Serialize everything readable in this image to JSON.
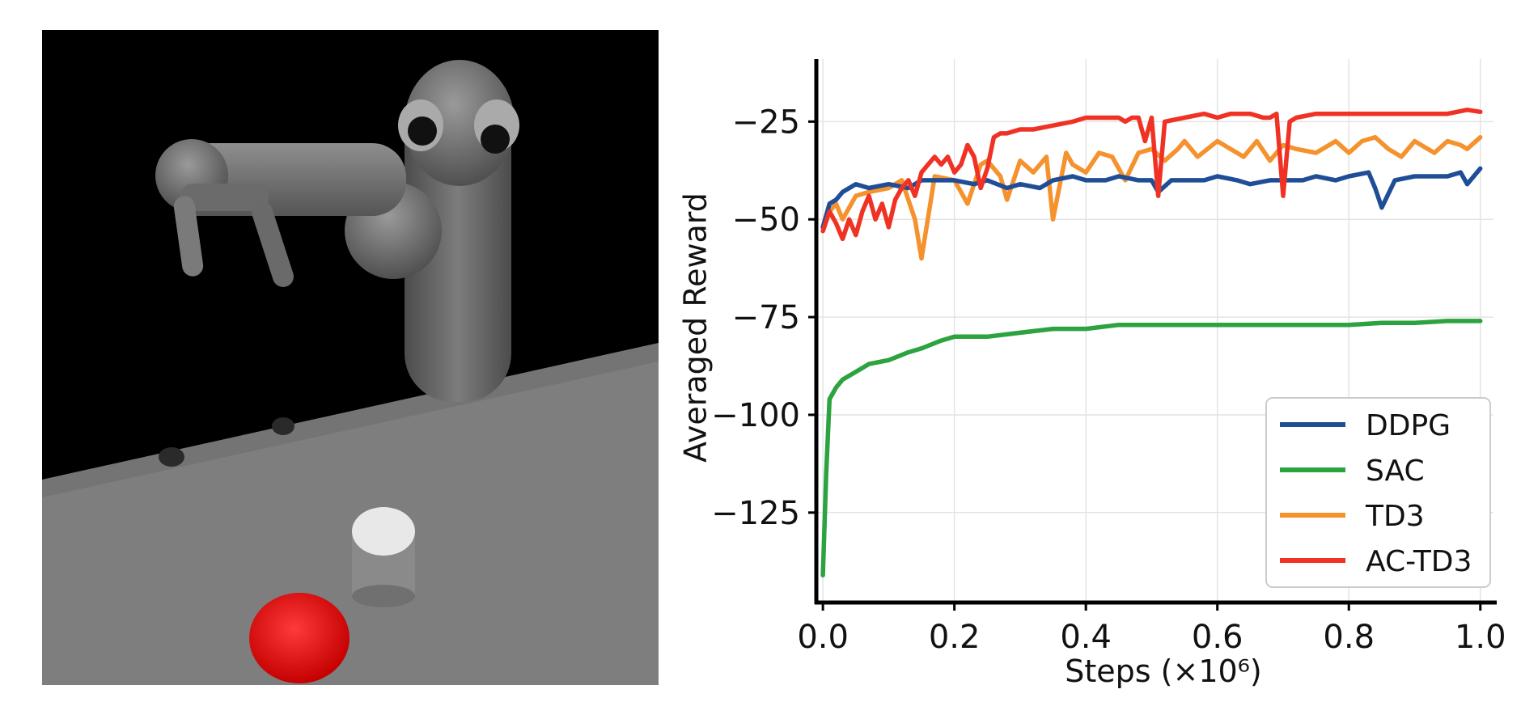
{
  "chart_data": {
    "type": "line",
    "xlabel": "Steps (×10⁶)",
    "ylabel": "Averaged Reward",
    "xlim": [
      -0.01,
      1.02
    ],
    "ylim": [
      -148,
      -9
    ],
    "xticks": [
      0.0,
      0.2,
      0.4,
      0.6,
      0.8,
      1.0
    ],
    "xtick_labels": [
      "0.0",
      "0.2",
      "0.4",
      "0.6",
      "0.8",
      "1.0"
    ],
    "yticks": [
      -25,
      -50,
      -75,
      -100,
      -125
    ],
    "ytick_labels": [
      "−25",
      "−50",
      "−75",
      "−100",
      "−125"
    ],
    "grid": true,
    "legend_position": "bottom-right",
    "series": [
      {
        "name": "DDPG",
        "color": "#1f4e96",
        "x": [
          0.0,
          0.01,
          0.02,
          0.03,
          0.05,
          0.07,
          0.1,
          0.13,
          0.15,
          0.18,
          0.2,
          0.23,
          0.25,
          0.28,
          0.3,
          0.33,
          0.35,
          0.38,
          0.4,
          0.43,
          0.45,
          0.48,
          0.5,
          0.51,
          0.53,
          0.55,
          0.58,
          0.6,
          0.63,
          0.65,
          0.68,
          0.7,
          0.73,
          0.75,
          0.78,
          0.8,
          0.83,
          0.84,
          0.85,
          0.87,
          0.9,
          0.92,
          0.95,
          0.97,
          0.98,
          1.0
        ],
        "values": [
          -52,
          -46,
          -45,
          -43,
          -41,
          -42,
          -41,
          -42,
          -40,
          -40,
          -40,
          -41,
          -40,
          -42,
          -41,
          -42,
          -40,
          -39,
          -40,
          -40,
          -39,
          -40,
          -40,
          -43,
          -40,
          -40,
          -40,
          -39,
          -40,
          -41,
          -40,
          -40,
          -40,
          -39,
          -40,
          -39,
          -38,
          -42,
          -47,
          -40,
          -39,
          -39,
          -39,
          -38,
          -41,
          -37
        ]
      },
      {
        "name": "SAC",
        "color": "#2ca33f",
        "x": [
          0.0,
          0.005,
          0.01,
          0.02,
          0.03,
          0.05,
          0.07,
          0.1,
          0.13,
          0.15,
          0.18,
          0.2,
          0.25,
          0.3,
          0.35,
          0.4,
          0.45,
          0.5,
          0.55,
          0.6,
          0.65,
          0.7,
          0.75,
          0.8,
          0.85,
          0.9,
          0.95,
          1.0
        ],
        "values": [
          -141,
          -115,
          -96,
          -93,
          -91,
          -89,
          -87,
          -86,
          -84,
          -83,
          -81,
          -80,
          -80,
          -79,
          -78,
          -78,
          -77,
          -77,
          -77,
          -77,
          -77,
          -77,
          -77,
          -77,
          -76.5,
          -76.5,
          -76,
          -76
        ]
      },
      {
        "name": "TD3",
        "color": "#f5922e",
        "x": [
          0.0,
          0.01,
          0.02,
          0.03,
          0.05,
          0.07,
          0.1,
          0.12,
          0.14,
          0.15,
          0.17,
          0.2,
          0.22,
          0.24,
          0.25,
          0.27,
          0.28,
          0.3,
          0.32,
          0.34,
          0.35,
          0.37,
          0.38,
          0.4,
          0.42,
          0.44,
          0.46,
          0.48,
          0.5,
          0.52,
          0.54,
          0.55,
          0.57,
          0.6,
          0.62,
          0.64,
          0.66,
          0.68,
          0.7,
          0.72,
          0.75,
          0.78,
          0.8,
          0.82,
          0.84,
          0.86,
          0.88,
          0.9,
          0.93,
          0.95,
          0.97,
          0.98,
          1.0
        ],
        "values": [
          -52,
          -48,
          -46,
          -50,
          -44,
          -43,
          -42,
          -40,
          -50,
          -60,
          -39,
          -40,
          -46,
          -36,
          -35,
          -39,
          -45,
          -35,
          -38,
          -34,
          -50,
          -33,
          -36,
          -38,
          -33,
          -34,
          -40,
          -33,
          -32,
          -35,
          -32,
          -30,
          -34,
          -30,
          -32,
          -34,
          -30,
          -35,
          -31,
          -32,
          -33,
          -30,
          -33,
          -30,
          -29,
          -32,
          -34,
          -30,
          -33,
          -30,
          -31,
          -32,
          -29
        ]
      },
      {
        "name": "AC-TD3",
        "color": "#f03225",
        "x": [
          0.0,
          0.01,
          0.02,
          0.03,
          0.04,
          0.05,
          0.06,
          0.07,
          0.08,
          0.09,
          0.1,
          0.11,
          0.12,
          0.13,
          0.14,
          0.15,
          0.16,
          0.17,
          0.18,
          0.19,
          0.2,
          0.21,
          0.22,
          0.23,
          0.24,
          0.25,
          0.26,
          0.27,
          0.28,
          0.3,
          0.32,
          0.35,
          0.38,
          0.4,
          0.42,
          0.45,
          0.46,
          0.47,
          0.48,
          0.49,
          0.5,
          0.51,
          0.52,
          0.55,
          0.58,
          0.6,
          0.62,
          0.65,
          0.67,
          0.68,
          0.69,
          0.7,
          0.71,
          0.72,
          0.75,
          0.8,
          0.85,
          0.9,
          0.95,
          0.98,
          1.0
        ],
        "values": [
          -53,
          -48,
          -51,
          -55,
          -50,
          -54,
          -48,
          -44,
          -50,
          -46,
          -52,
          -45,
          -42,
          -40,
          -44,
          -38,
          -36,
          -34,
          -36,
          -34,
          -38,
          -36,
          -31,
          -34,
          -42,
          -37,
          -29,
          -28,
          -28,
          -27,
          -27,
          -26,
          -25,
          -24,
          -24,
          -24,
          -25,
          -24,
          -24,
          -30,
          -24,
          -44,
          -25,
          -24,
          -23,
          -24,
          -23,
          -23,
          -24,
          -24,
          -23,
          -44,
          -25,
          -24,
          -23,
          -23,
          -23,
          -23,
          -23,
          -22,
          -22.5
        ]
      }
    ]
  }
}
